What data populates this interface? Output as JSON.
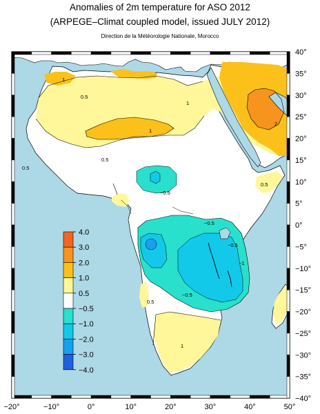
{
  "title": "Anomalies of 2m temperature for ASO 2012",
  "subtitle": "(ARPEGE–Climat coupled model, issued JULY 2012)",
  "credit": "Direction de la Météorologie Nationale, Morocco",
  "map": {
    "lon_ticks": [
      "−20°",
      "−10°",
      "0°",
      "10°",
      "20°",
      "30°",
      "40°",
      "50°"
    ],
    "lat_ticks": [
      "40°",
      "35°",
      "30°",
      "25°",
      "20°",
      "15°",
      "10°",
      "5°",
      "0°",
      "−5°",
      "−10°",
      "−15°",
      "−20°",
      "−25°",
      "−30°",
      "−35°",
      "−40°"
    ],
    "extent": {
      "lon": [
        -20,
        50
      ],
      "lat": [
        -40,
        40
      ]
    },
    "contour_labels": [
      "0.5",
      "0.5",
      "1",
      "0.5",
      "1",
      "1",
      "2",
      "−0.5",
      "−0.5",
      "−0.5",
      "−1",
      "−0.5",
      "0.5",
      "0.5",
      "1"
    ],
    "colors": {
      "ocean": "#add8e6",
      "land": "#ffffff"
    }
  },
  "legend": {
    "labels": [
      "4.0",
      "3.0",
      "2.0",
      "1.0",
      "0.5",
      "−0.5",
      "−1.0",
      "−2.0",
      "−3.0",
      "−4.0"
    ],
    "colors": [
      "#f26522",
      "#f7941d",
      "#fbc01a",
      "#fff799",
      "#ffffff",
      "#28e0cc",
      "#12c9ea",
      "#189ff0",
      "#2060e0"
    ]
  }
}
